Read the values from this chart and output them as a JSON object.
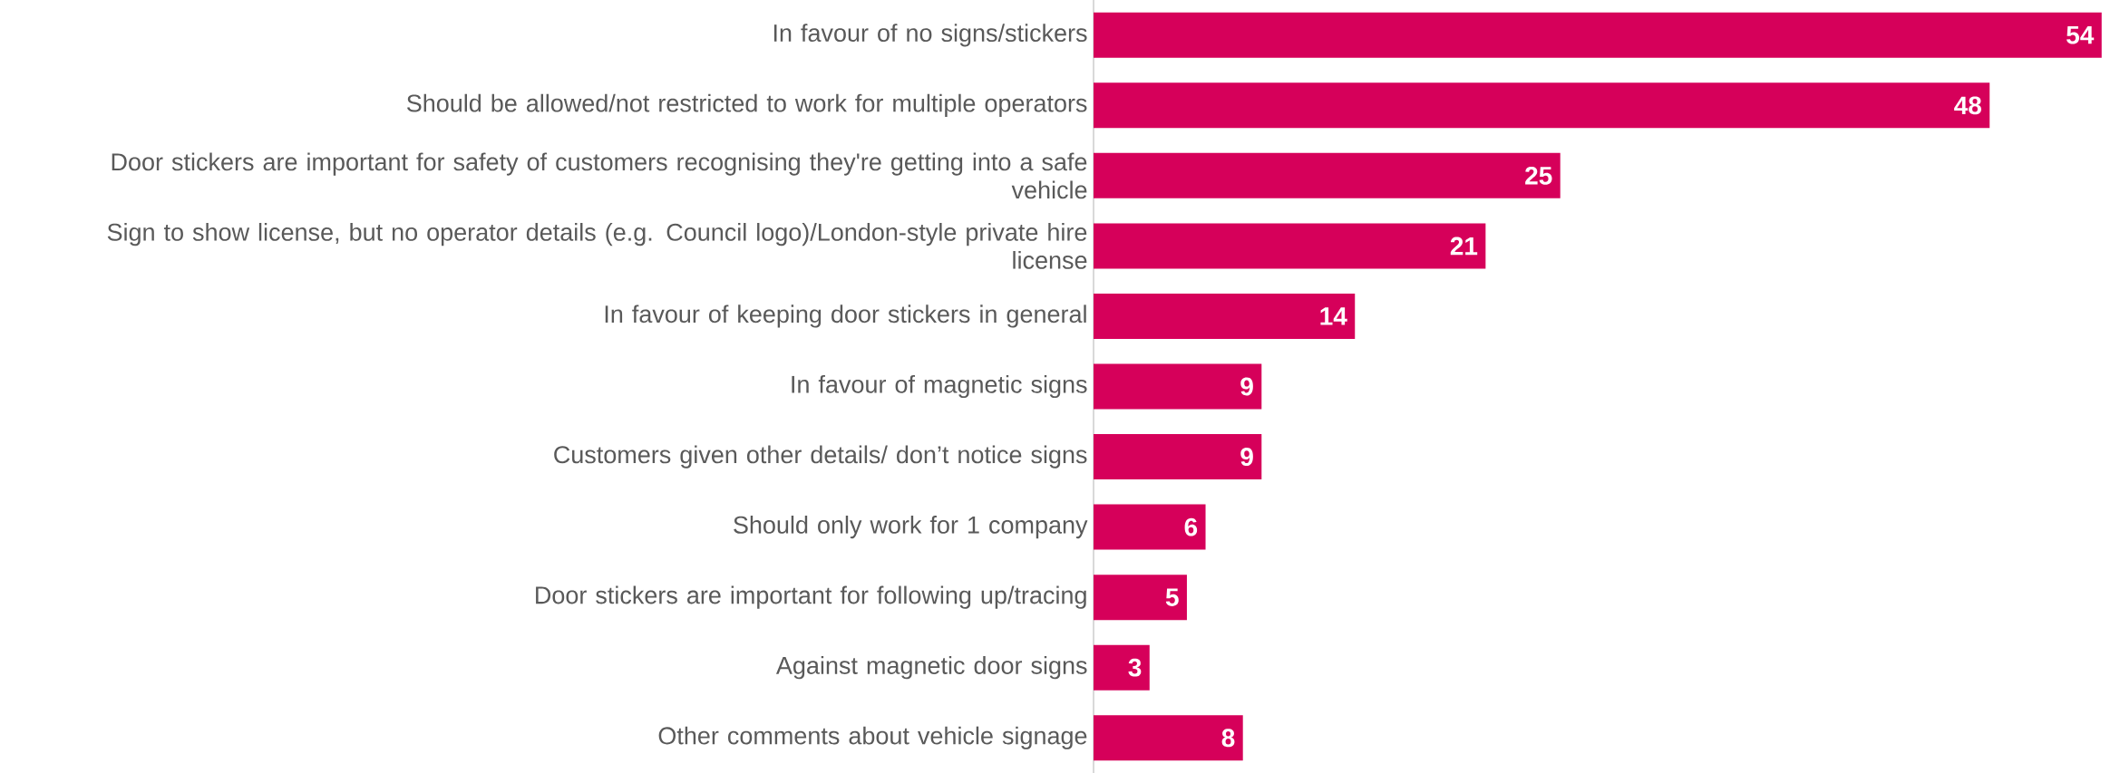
{
  "chart_data": {
    "type": "bar",
    "orientation": "horizontal",
    "tick_labels": "y",
    "data_labels": true,
    "color": "#d6005a",
    "categories": [
      "In favour of no signs/stickers",
      "Should be allowed/not restricted to work for multiple operators",
      "Door stickers are important for safety of customers recognising they're getting into a safe vehicle",
      "Sign to show license, but no operator details (e.g. Council logo)/London-style private hire license",
      "In favour of keeping door stickers in general",
      "In favour of magnetic signs",
      "Customers given other details/ don’t notice signs",
      "Should only work for 1 company",
      "Door stickers are important for following up/tracing",
      "Against magnetic door signs",
      "Other comments about vehicle signage"
    ],
    "values": [
      54,
      48,
      25,
      21,
      14,
      9,
      9,
      6,
      5,
      3,
      8
    ]
  }
}
